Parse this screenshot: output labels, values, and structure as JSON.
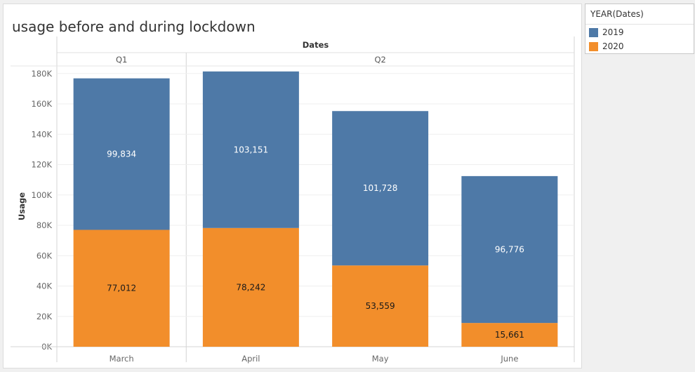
{
  "chart_data": {
    "type": "bar",
    "stacked": true,
    "title": "usage before and during lockdown",
    "column_header": "Dates",
    "ylabel": "Usage",
    "ylim": [
      0,
      185000
    ],
    "y_ticks": [
      "0K",
      "20K",
      "40K",
      "60K",
      "80K",
      "100K",
      "120K",
      "140K",
      "160K",
      "180K"
    ],
    "quarters": [
      {
        "label": "Q1",
        "categories": [
          "March"
        ]
      },
      {
        "label": "Q2",
        "categories": [
          "April",
          "May",
          "June"
        ]
      }
    ],
    "categories": [
      "March",
      "April",
      "May",
      "June"
    ],
    "series": [
      {
        "name": "2020",
        "color": "#f28e2b",
        "label_color": "#1a1a1a",
        "values": [
          77012,
          78242,
          53559,
          15661
        ],
        "labels": [
          "77,012",
          "78,242",
          "53,559",
          "15,661"
        ]
      },
      {
        "name": "2019",
        "color": "#4e79a7",
        "label_color": "#ffffff",
        "values": [
          99834,
          103151,
          101728,
          96776
        ],
        "labels": [
          "99,834",
          "103,151",
          "101,728",
          "96,776"
        ]
      }
    ],
    "grid": true,
    "legend": {
      "title": "YEAR(Dates)",
      "placement": "top-right",
      "items": [
        {
          "label": "2019",
          "color": "#4e79a7"
        },
        {
          "label": "2020",
          "color": "#f28e2b"
        }
      ]
    }
  }
}
